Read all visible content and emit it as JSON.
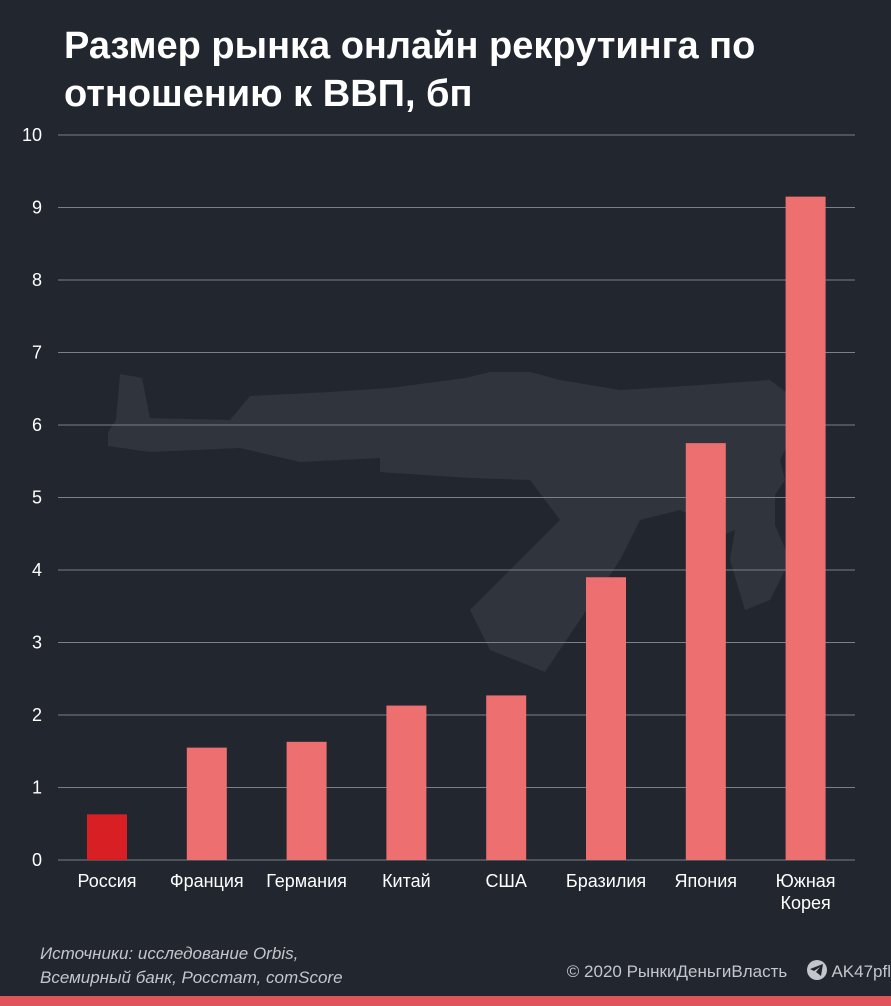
{
  "chart_data": {
    "type": "bar",
    "title": "Размер рынка онлайн рекрутинга по отношению к ВВП, бп",
    "categories": [
      [
        "Россия"
      ],
      [
        "Франция"
      ],
      [
        "Германия"
      ],
      [
        "Китай"
      ],
      [
        "США"
      ],
      [
        "Бразилия"
      ],
      [
        "Япония"
      ],
      [
        "Южная",
        "Корея"
      ]
    ],
    "values": [
      0.63,
      1.55,
      1.63,
      2.13,
      2.27,
      3.9,
      5.75,
      9.15
    ],
    "highlight_index": 0,
    "ylim": [
      0,
      10
    ],
    "yticks": [
      "0",
      "1",
      "2",
      "3",
      "4",
      "5",
      "6",
      "7",
      "8",
      "9",
      "10"
    ],
    "xlabel": "",
    "ylabel": "",
    "grid": true,
    "colors": {
      "bar": "#ee6f70",
      "highlight": "#d71f24",
      "grid": "#7a7f88",
      "background": "#22262e"
    }
  },
  "footer": {
    "sources_line1": "Источники: исследование Orbis,",
    "sources_line2": "Всемирный банк, Росстат, comScore",
    "copyright": "© 2020",
    "publisher": "РынкиДеньгиВласть",
    "telegram_handle": "AK47pfl",
    "telegram_icon": "telegram-icon",
    "watermark_icon": "rifle-silhouette-icon"
  }
}
